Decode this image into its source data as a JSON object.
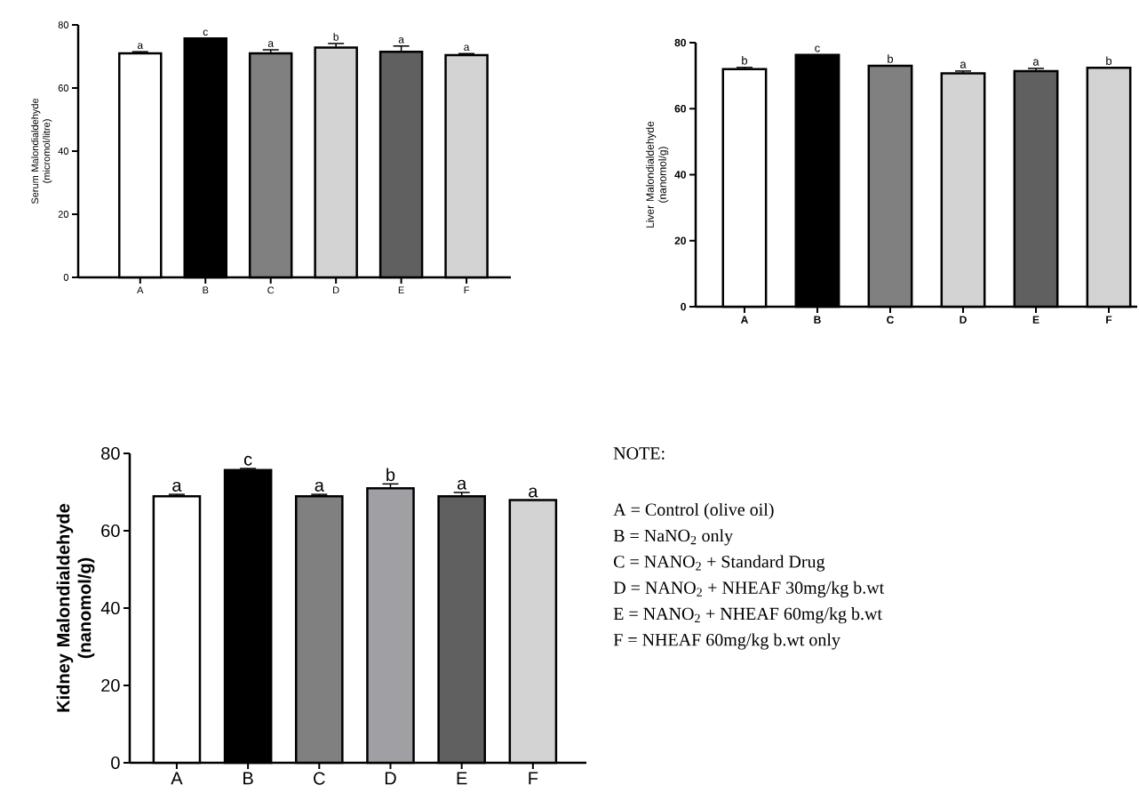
{
  "chart_data": [
    {
      "type": "bar",
      "ylabel": "Serum Malondialdehyde (micromol/litre)",
      "categories": [
        "A",
        "B",
        "C",
        "D",
        "E",
        "F"
      ],
      "values": [
        71.0,
        75.7,
        71.0,
        72.8,
        71.5,
        70.4
      ],
      "errors": [
        0.5,
        null,
        1.1,
        1.3,
        1.8,
        0.5
      ],
      "colors": [
        "#ffffff",
        "#000000",
        "#808080",
        "#d3d3d3",
        "#606060",
        "#d3d3d3"
      ],
      "value_labels": [
        "a",
        "c",
        "a",
        "b",
        "a",
        "a"
      ],
      "ylim": [
        0,
        80
      ],
      "yticks": [
        0,
        20,
        40,
        60,
        80
      ]
    },
    {
      "type": "bar",
      "ylabel": "Liver Malondialdehyde (nanomol/g)",
      "categories": [
        "A",
        "B",
        "C",
        "D",
        "E",
        "F"
      ],
      "values": [
        72.0,
        76.3,
        73.0,
        70.7,
        71.4,
        72.4
      ],
      "errors": [
        0.5,
        null,
        null,
        0.7,
        0.8,
        null
      ],
      "colors": [
        "#ffffff",
        "#000000",
        "#808080",
        "#d3d3d3",
        "#606060",
        "#d3d3d3"
      ],
      "value_labels": [
        "b",
        "c",
        "b",
        "a",
        "a",
        "b"
      ],
      "ylim": [
        0,
        80
      ],
      "yticks": [
        0,
        20,
        40,
        60,
        80
      ]
    },
    {
      "type": "bar",
      "ylabel": "Kidney Malondialdehyde (nanomol/g)",
      "categories": [
        "A",
        "B",
        "C",
        "D",
        "E",
        "F"
      ],
      "values": [
        68.9,
        75.7,
        68.9,
        71.0,
        68.9,
        67.9
      ],
      "errors": [
        0.5,
        0.4,
        0.5,
        1.1,
        1.0,
        null
      ],
      "colors": [
        "#ffffff",
        "#000000",
        "#808080",
        "#a0a0a4",
        "#606060",
        "#d3d3d3"
      ],
      "value_labels": [
        "a",
        "c",
        "a",
        "b",
        "a",
        "a"
      ],
      "ylim": [
        0,
        80
      ],
      "yticks": [
        0,
        20,
        40,
        60,
        80
      ]
    },
    {
      "type": "other",
      "annotations": [
        "NOTE:",
        "A = Control (olive oil)",
        "B = NaNO$_{2}$ only",
        "C = NANO$_{2}$ + Standard Drug",
        "D = NANO$_{2}$ + NHEAF 30mg/kg b.wt",
        "E = NANO$_{2}$ + NHEAF 60mg/kg b.wt",
        "F = NHEAF 60mg/kg b.wt only"
      ]
    }
  ]
}
